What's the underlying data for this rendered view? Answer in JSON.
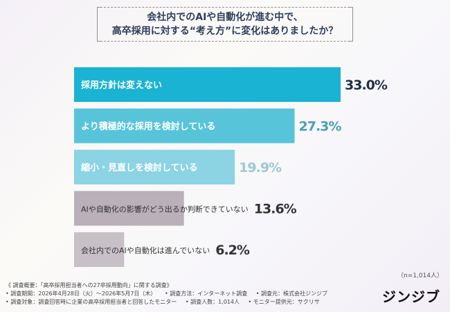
{
  "title": {
    "line1": "会社内でのAIや自動化が進む中で、",
    "line2": "高卒採用に対する“考え方”に変化はありましたか？"
  },
  "chart_data": {
    "type": "bar",
    "orientation": "horizontal",
    "categories": [
      "採用方針は変えない",
      "より積極的な採用を検討している",
      "縮小・見直しを検討している",
      "AIや自動化の影響がどう出るか判断できていない",
      "会社内でのAIや自動化は進んでいない"
    ],
    "values": [
      33.0,
      27.3,
      19.9,
      13.6,
      6.2
    ],
    "value_labels": [
      "33.0%",
      "27.3%",
      "19.9%",
      "13.6%",
      "6.2%"
    ],
    "colors": [
      "#1ab3d3",
      "#57c4da",
      "#8cd3e3",
      "#b9b0b9",
      "#c7c0c7"
    ],
    "value_colors": [
      "#1f2f45",
      "#4a9fb5",
      "#9cc9d4",
      "#333333",
      "#333333"
    ],
    "label_colors": [
      "#ffffff",
      "#ffffff",
      "#ffffff",
      "#333333",
      "#333333"
    ],
    "xlim": [
      0,
      33.0
    ]
  },
  "sample_note": "（n=1,014人）",
  "footer": {
    "line1": "《 調査概要：「高卒採用担当者への27卒採用動向」に関する調査》",
    "line2": [
      "• 調査期間：2026年4月28日（火）～2026年5月7日（木）",
      "• 調査方法：インターネット調査",
      "• 調査元：株式会社ジンジブ"
    ],
    "line3": [
      "• 調査対象：調査回答時に企業の高卒採用担当者と回答したモニター",
      "• 調査人数：1,014人",
      "• モニター提供元：サクリサ"
    ]
  },
  "logo": "ジンジブ"
}
